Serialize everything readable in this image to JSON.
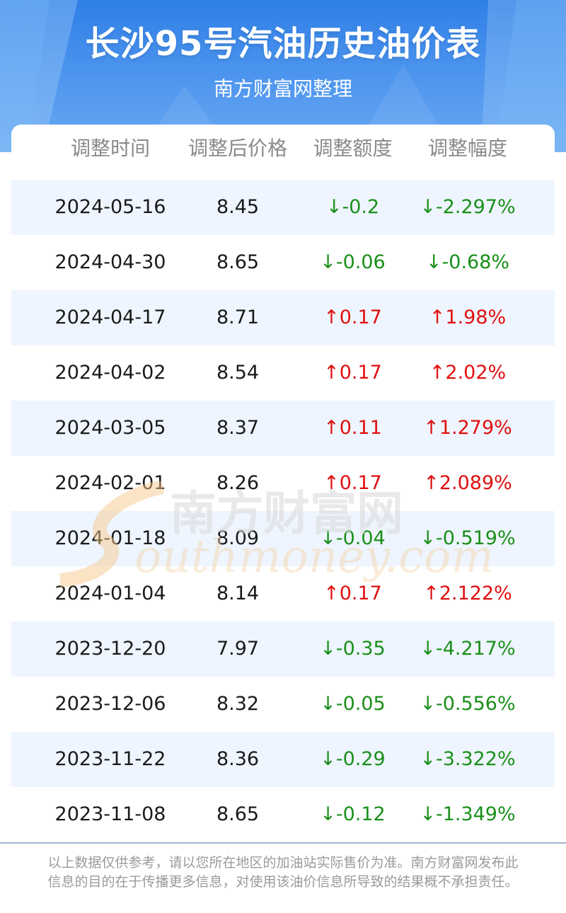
{
  "header": {
    "title": "长沙95号汽油历史油价表",
    "subtitle": "南方财富网整理"
  },
  "table": {
    "columns": [
      "调整时间",
      "调整后价格",
      "调整额度",
      "调整幅度"
    ],
    "rows": [
      {
        "date": "2024-05-16",
        "price": "8.45",
        "change": "↓-0.2",
        "percent": "↓-2.297%",
        "dir": "down"
      },
      {
        "date": "2024-04-30",
        "price": "8.65",
        "change": "↓-0.06",
        "percent": "↓-0.68%",
        "dir": "down"
      },
      {
        "date": "2024-04-17",
        "price": "8.71",
        "change": "↑0.17",
        "percent": "↑1.98%",
        "dir": "up"
      },
      {
        "date": "2024-04-02",
        "price": "8.54",
        "change": "↑0.17",
        "percent": "↑2.02%",
        "dir": "up"
      },
      {
        "date": "2024-03-05",
        "price": "8.37",
        "change": "↑0.11",
        "percent": "↑1.279%",
        "dir": "up"
      },
      {
        "date": "2024-02-01",
        "price": "8.26",
        "change": "↑0.17",
        "percent": "↑2.089%",
        "dir": "up"
      },
      {
        "date": "2024-01-18",
        "price": "8.09",
        "change": "↓-0.04",
        "percent": "↓-0.519%",
        "dir": "down"
      },
      {
        "date": "2024-01-04",
        "price": "8.14",
        "change": "↑0.17",
        "percent": "↑2.122%",
        "dir": "up"
      },
      {
        "date": "2023-12-20",
        "price": "7.97",
        "change": "↓-0.35",
        "percent": "↓-4.217%",
        "dir": "down"
      },
      {
        "date": "2023-12-06",
        "price": "8.32",
        "change": "↓-0.05",
        "percent": "↓-0.556%",
        "dir": "down"
      },
      {
        "date": "2023-11-22",
        "price": "8.36",
        "change": "↓-0.29",
        "percent": "↓-3.322%",
        "dir": "down"
      },
      {
        "date": "2023-11-08",
        "price": "8.65",
        "change": "↓-0.12",
        "percent": "↓-1.349%",
        "dir": "down"
      }
    ]
  },
  "watermark": {
    "cn": "南方财富网",
    "en": "outhmoney.com"
  },
  "footer": {
    "disclaimer": "以上数据仅供参考，请以您所在地区的加油站实际售价为准。南方财富网发布此信息的目的在于传播更多信息，对使用该油价信息所导致的结果概不承担责任。"
  },
  "colors": {
    "up": "#e01010",
    "down": "#1a8f1a",
    "header_blue": "#2f7fe6",
    "stripe": "#eef5fe"
  }
}
